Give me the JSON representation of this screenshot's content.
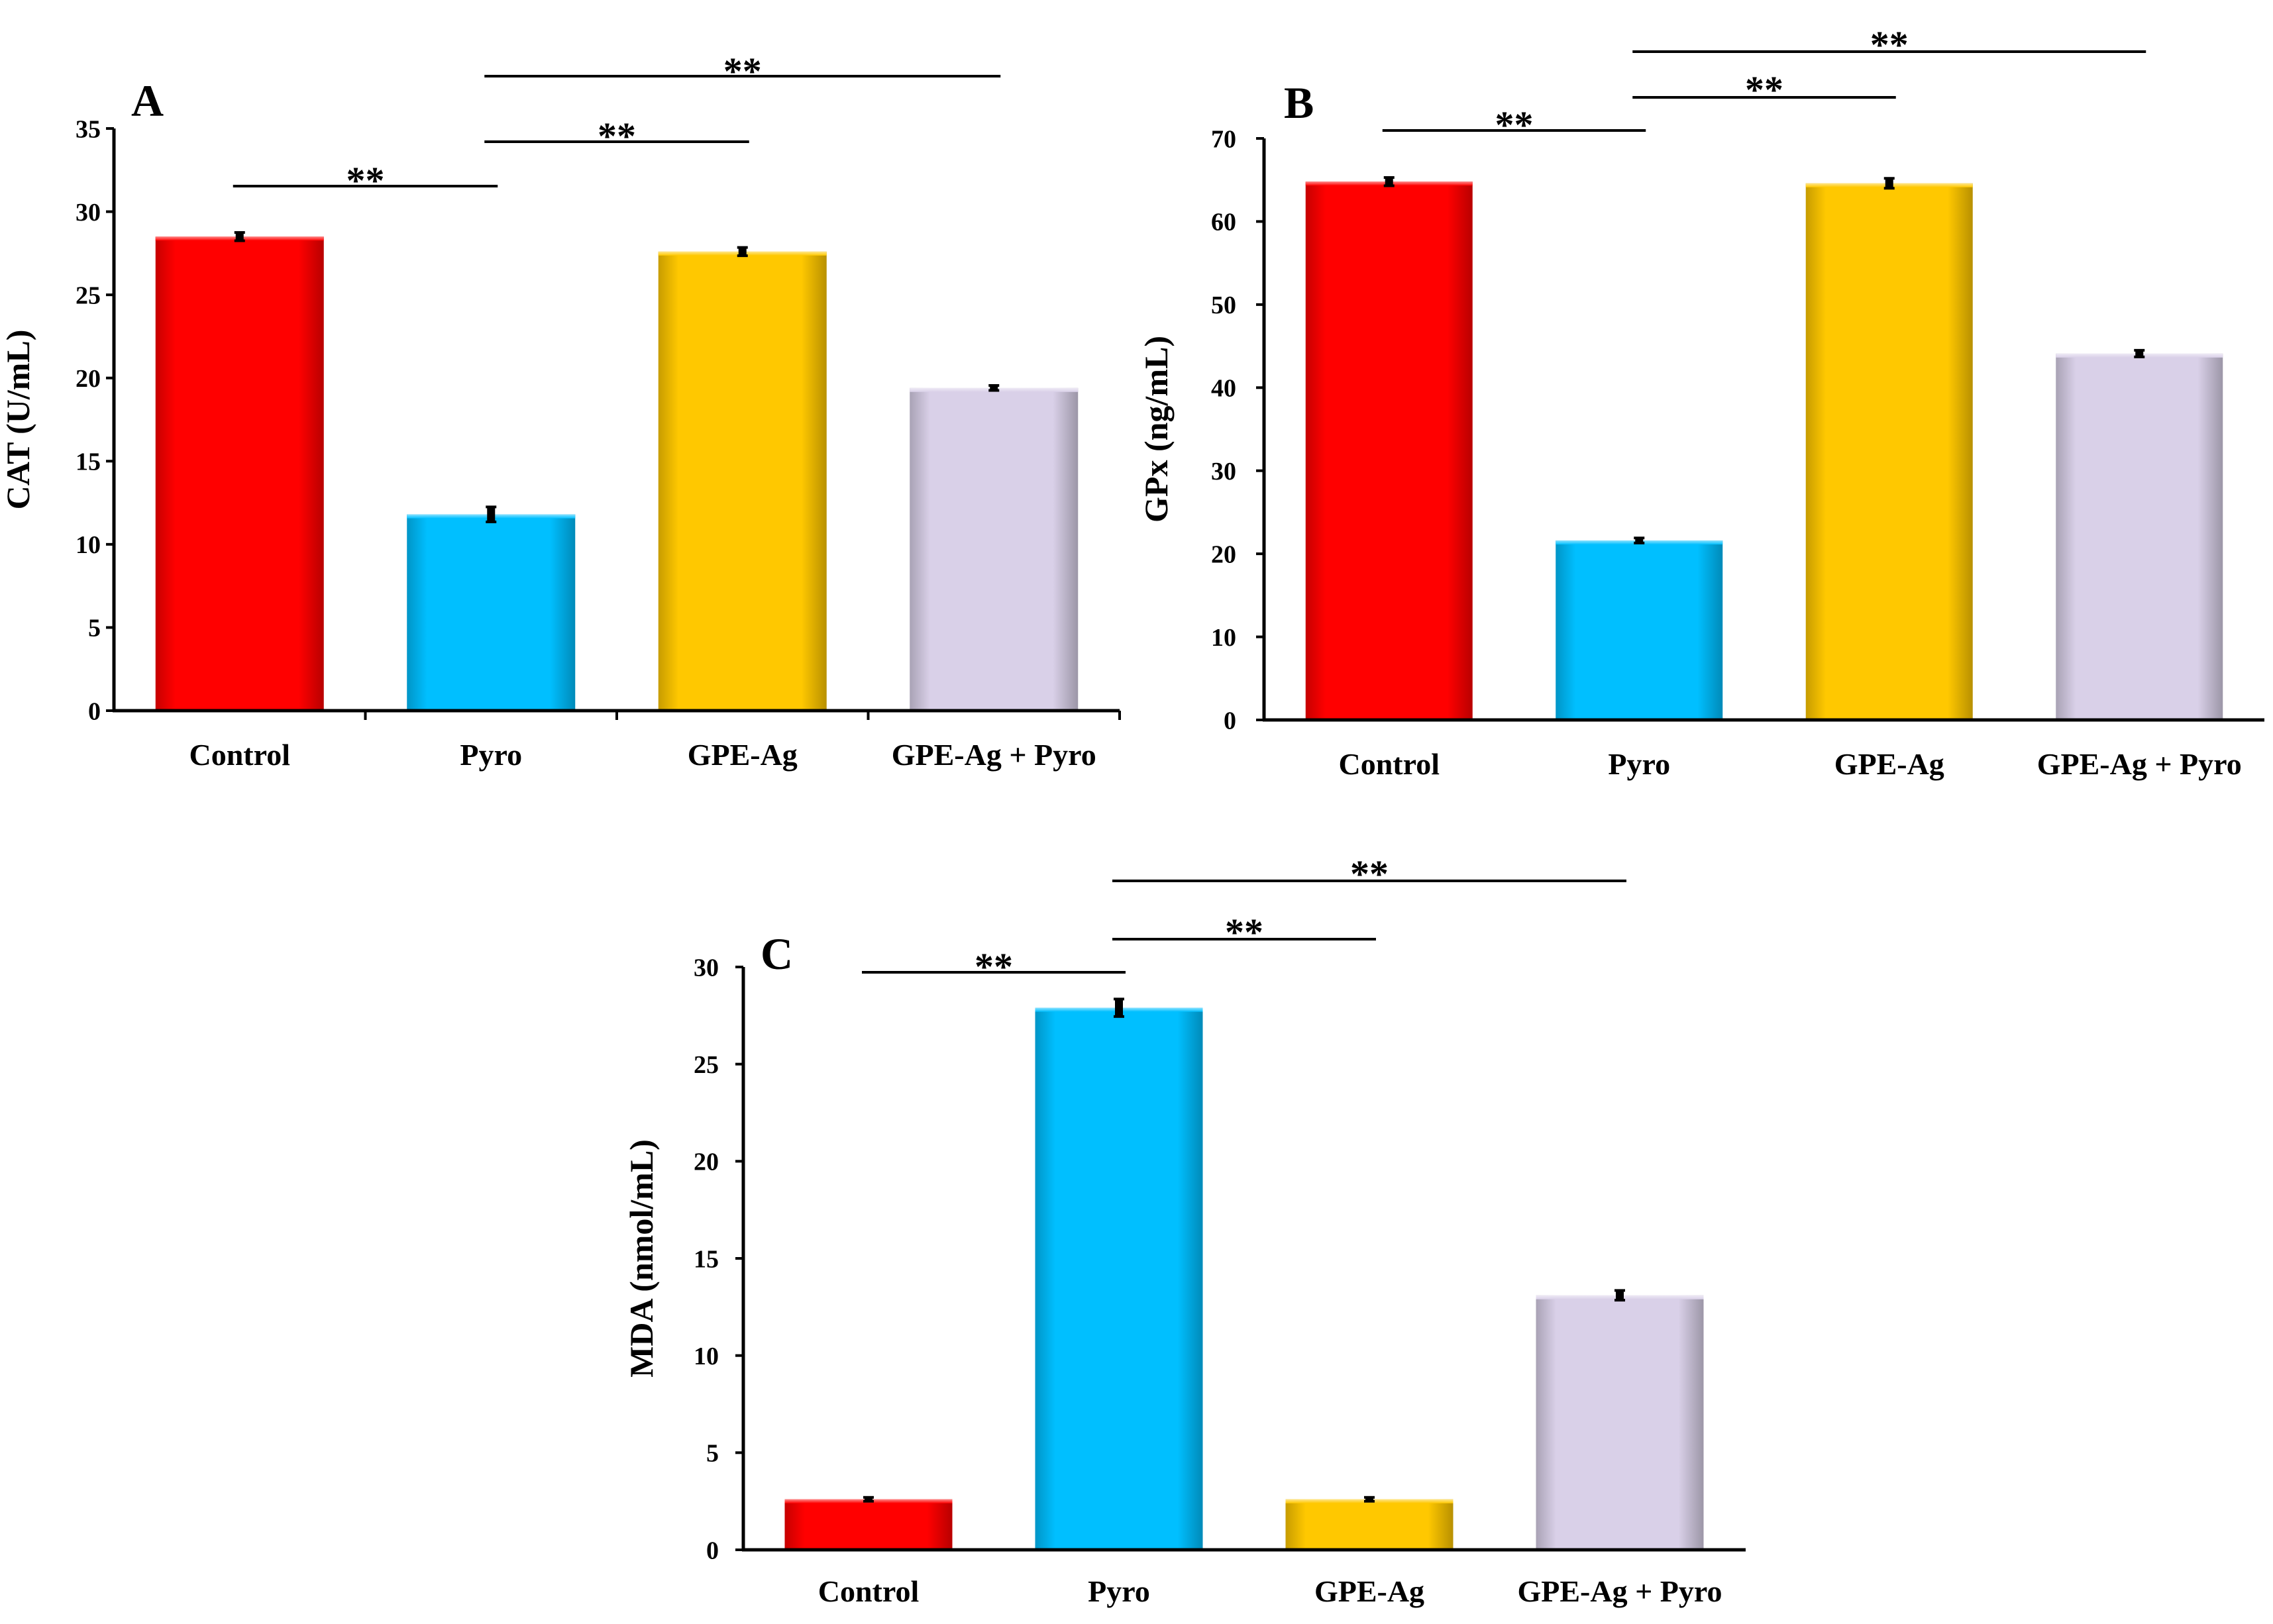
{
  "figure": {
    "categories": [
      "Control",
      "Pyro",
      "GPE-Ag",
      "GPE-Ag + Pyro"
    ],
    "colors": {
      "Control": "#ff0000",
      "Pyro": "#00bfff",
      "GPE-Ag": "#ffc800",
      "GPE-Ag + Pyro": "#d9d0e8"
    },
    "significance_label": "**"
  },
  "chart_data": [
    {
      "panel": "A",
      "type": "bar",
      "title": "",
      "xlabel": "",
      "ylabel": "CAT (U/mL)",
      "categories": [
        "Control",
        "Pyro",
        "GPE-Ag",
        "GPE-Ag + Pyro"
      ],
      "values": [
        28.5,
        11.8,
        27.6,
        19.4
      ],
      "errors": [
        0.25,
        0.45,
        0.25,
        0.15
      ],
      "ylim": [
        0,
        35
      ],
      "yticks": [
        0,
        5,
        10,
        15,
        20,
        25,
        30,
        35
      ],
      "grid": false,
      "significance": [
        {
          "from": "Control",
          "to": "Pyro",
          "label": "**"
        },
        {
          "from": "Pyro",
          "to": "GPE-Ag",
          "label": "**"
        },
        {
          "from": "Pyro",
          "to": "GPE-Ag + Pyro",
          "label": "**"
        }
      ]
    },
    {
      "panel": "B",
      "type": "bar",
      "title": "",
      "xlabel": "",
      "ylabel": "GPx (ng/mL)",
      "categories": [
        "Control",
        "Pyro",
        "GPE-Ag",
        "GPE-Ag + Pyro"
      ],
      "values": [
        64.8,
        21.6,
        64.6,
        44.1
      ],
      "errors": [
        0.5,
        0.3,
        0.6,
        0.4
      ],
      "ylim": [
        0,
        70
      ],
      "yticks": [
        0,
        10,
        20,
        30,
        40,
        50,
        60,
        70
      ],
      "grid": false,
      "significance": [
        {
          "from": "Control",
          "to": "Pyro",
          "label": "**"
        },
        {
          "from": "Pyro",
          "to": "GPE-Ag",
          "label": "**"
        },
        {
          "from": "Pyro",
          "to": "GPE-Ag + Pyro",
          "label": "**"
        }
      ]
    },
    {
      "panel": "C",
      "type": "bar",
      "title": "",
      "xlabel": "",
      "ylabel": "MDA  (nmol/mL)",
      "categories": [
        "Control",
        "Pyro",
        "GPE-Ag",
        "GPE-Ag + Pyro"
      ],
      "values": [
        2.6,
        27.9,
        2.6,
        13.1
      ],
      "errors": [
        0.1,
        0.45,
        0.1,
        0.25
      ],
      "ylim": [
        0,
        30
      ],
      "yticks": [
        0,
        5,
        10,
        15,
        20,
        25,
        30
      ],
      "grid": false,
      "significance": [
        {
          "from": "Control",
          "to": "Pyro",
          "label": "**"
        },
        {
          "from": "Pyro",
          "to": "GPE-Ag",
          "label": "**"
        },
        {
          "from": "Pyro",
          "to": "GPE-Ag + Pyro",
          "label": "**"
        }
      ]
    }
  ]
}
